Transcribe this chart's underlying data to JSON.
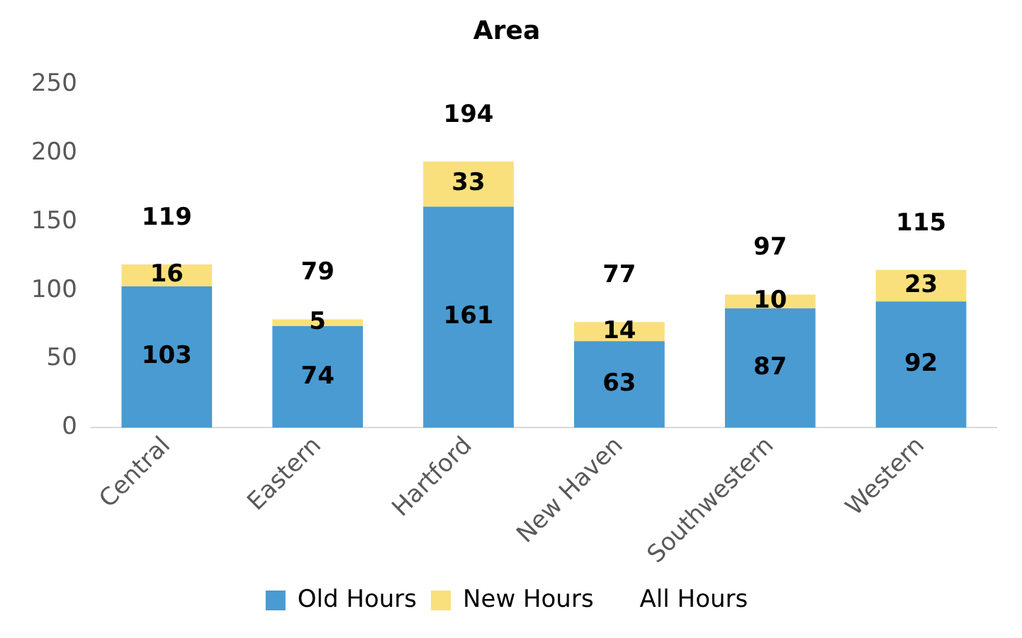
{
  "chart_data": {
    "type": "bar",
    "title": "Area",
    "stacked": true,
    "categories": [
      "Central",
      "Eastern",
      "Hartford",
      "New Haven",
      "Southwestern",
      "Western"
    ],
    "series": [
      {
        "name": "Old Hours",
        "color": "#4a9bd1",
        "values": [
          103,
          74,
          161,
          63,
          87,
          92
        ]
      },
      {
        "name": "New Hours",
        "color": "#f9e07c",
        "values": [
          16,
          5,
          33,
          14,
          10,
          23
        ]
      }
    ],
    "totals": [
      "119",
      "79",
      "194",
      "77",
      "97",
      "115"
    ],
    "annotations": [
      "All Hours"
    ],
    "ylim": [
      0,
      250
    ],
    "yticks": [
      0,
      50,
      100,
      150,
      200,
      250
    ],
    "grid": false,
    "legend": "bottom",
    "data_labels": true
  }
}
